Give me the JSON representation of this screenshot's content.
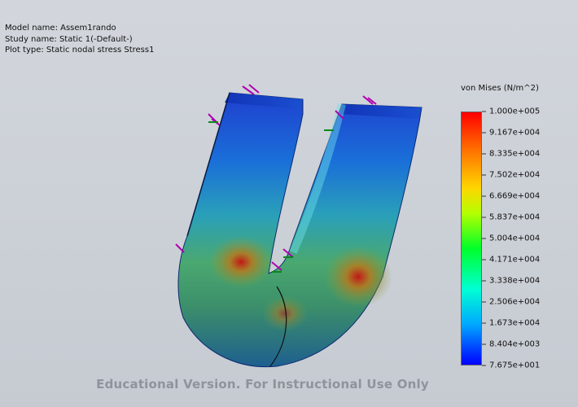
{
  "info": {
    "model_name": "Model name: Assem1rando",
    "study_name": "Study name: Static 1(-Default-)",
    "plot_type": "Plot type: Static nodal stress Stress1"
  },
  "legend": {
    "title": "von Mises (N/m^2)",
    "ticks": [
      "1.000e+005",
      "9.167e+004",
      "8.335e+004",
      "7.502e+004",
      "6.669e+004",
      "5.837e+004",
      "5.004e+004",
      "4.171e+004",
      "3.338e+004",
      "2.506e+004",
      "1.673e+004",
      "8.404e+003",
      "7.675e+001"
    ],
    "colors": {
      "max": "#ff0000",
      "mid": "#00ff2a",
      "min": "#0000ff"
    }
  },
  "watermark": "Educational Version. For Instructional Use Only",
  "icons": [
    "force-arrow-icon",
    "fixture-arrow-icon"
  ]
}
